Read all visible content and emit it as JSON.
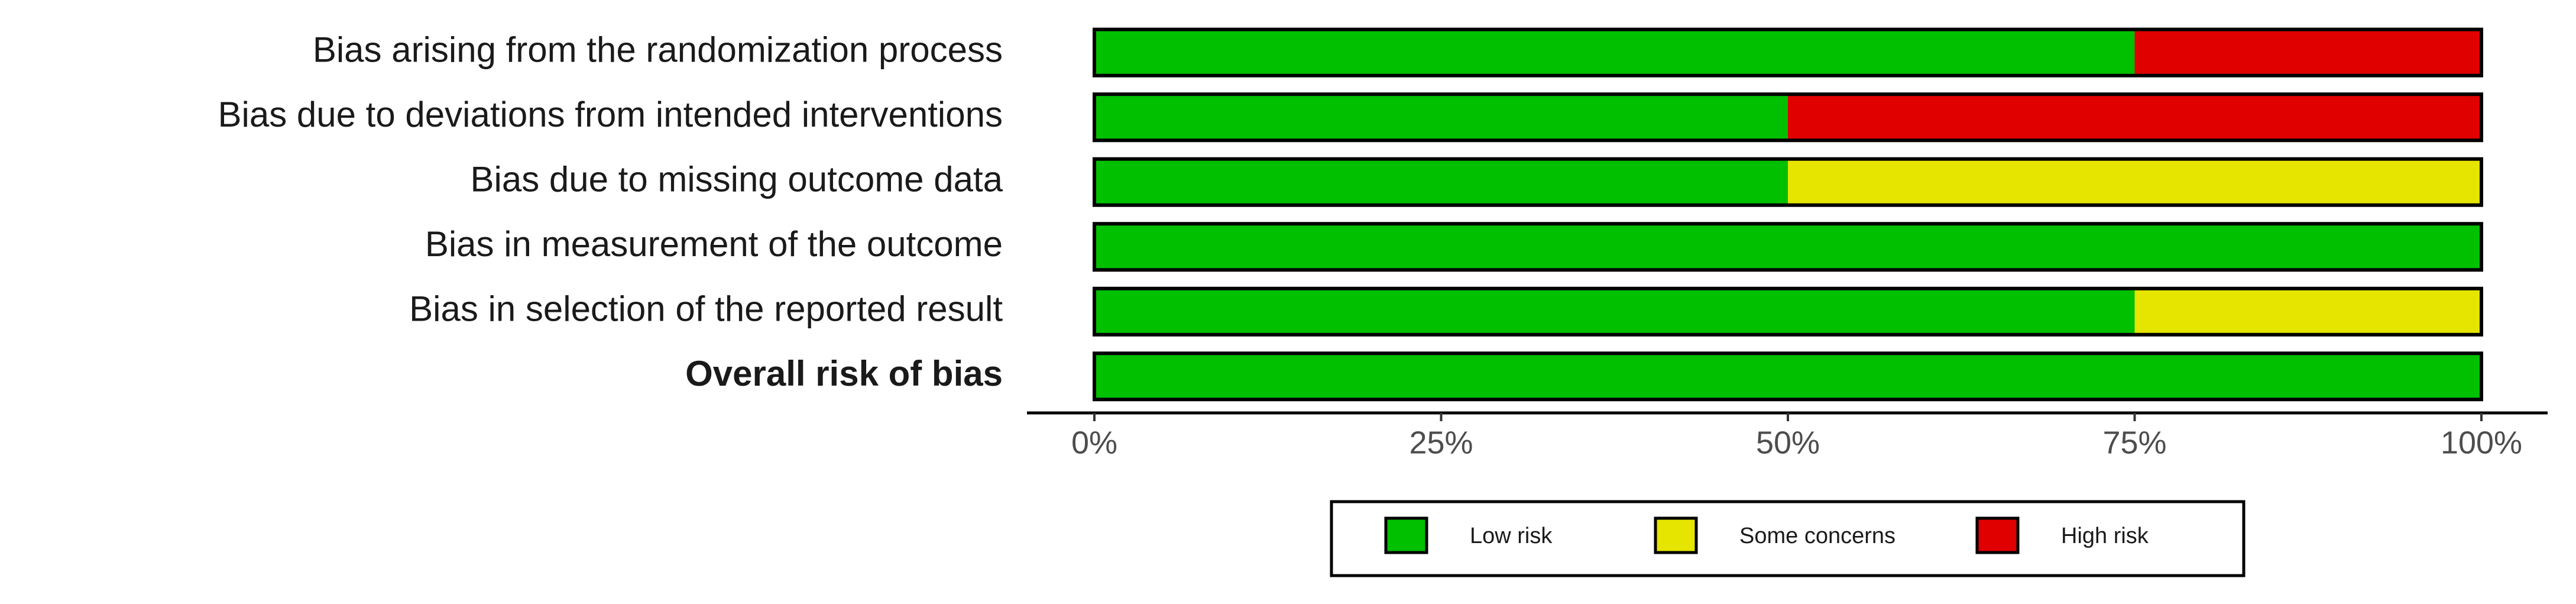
{
  "chart_data": {
    "type": "bar",
    "orientation": "horizontal",
    "stacked": true,
    "categories": [
      "Bias arising from the randomization process",
      "Bias due to deviations from intended interventions",
      "Bias due to missing outcome data",
      "Bias in measurement of the outcome",
      "Bias in selection of the reported result",
      "Overall risk of bias"
    ],
    "series": [
      {
        "name": "Low risk",
        "color": "#00c000",
        "values": [
          75,
          50,
          50,
          100,
          75,
          100
        ]
      },
      {
        "name": "Some concerns",
        "color": "#e5e500",
        "values": [
          0,
          0,
          50,
          0,
          25,
          0
        ]
      },
      {
        "name": "High risk",
        "color": "#e00000",
        "values": [
          25,
          50,
          0,
          0,
          0,
          0
        ]
      }
    ],
    "xlim": [
      0,
      100
    ],
    "xticks": [
      {
        "value": 0,
        "label": "0%"
      },
      {
        "value": 25,
        "label": "25%"
      },
      {
        "value": 50,
        "label": "50%"
      },
      {
        "value": 75,
        "label": "75%"
      },
      {
        "value": 100,
        "label": "100%"
      }
    ],
    "legend": "bottom"
  }
}
